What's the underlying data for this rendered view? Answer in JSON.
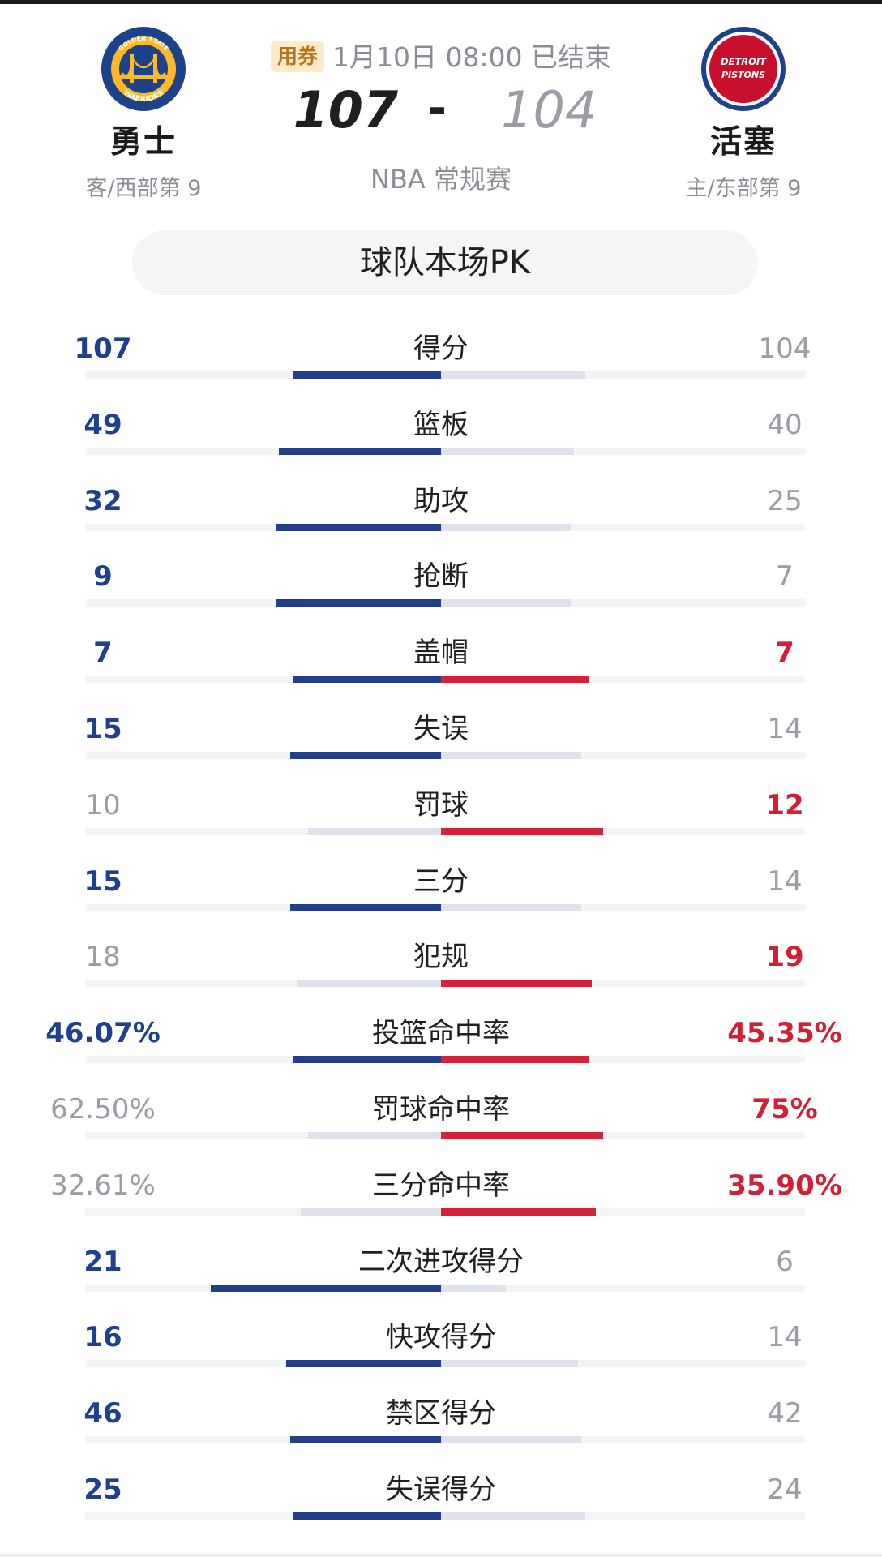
{
  "game": {
    "coupon_label": "用券",
    "status": "1月10日 08:00 已结束",
    "league": "NBA 常规赛",
    "score_dash": "-"
  },
  "away": {
    "name": "勇士",
    "rank": "客/西部第 9",
    "score": "107",
    "logo": {
      "icon": "warriors-logo",
      "text_top": "GOLDEN STATE",
      "text_bottom": "WARRIORS",
      "color": "#1d428a",
      "accent": "#fdb927"
    }
  },
  "home": {
    "name": "活塞",
    "rank": "主/东部第 9",
    "score": "104",
    "logo": {
      "icon": "pistons-logo",
      "text_top": "DETROIT",
      "text_bottom": "PISTONS",
      "color": "#c8102e",
      "accent": "#1d428a"
    }
  },
  "pk_title": "球队本场PK",
  "colors": {
    "away": "#233f8c",
    "home": "#d5223a",
    "neutral": "#9a9da6"
  },
  "stats": [
    {
      "label": "得分",
      "left": "107",
      "right": "104",
      "left_win": true,
      "right_win": false,
      "left_frac": 0.41,
      "right_frac": 0.4
    },
    {
      "label": "篮板",
      "left": "49",
      "right": "40",
      "left_win": true,
      "right_win": false,
      "left_frac": 0.45,
      "right_frac": 0.37
    },
    {
      "label": "助攻",
      "left": "32",
      "right": "25",
      "left_win": true,
      "right_win": false,
      "left_frac": 0.46,
      "right_frac": 0.36
    },
    {
      "label": "抢断",
      "left": "9",
      "right": "7",
      "left_win": true,
      "right_win": false,
      "left_frac": 0.46,
      "right_frac": 0.36
    },
    {
      "label": "盖帽",
      "left": "7",
      "right": "7",
      "left_win": true,
      "right_win": true,
      "left_frac": 0.41,
      "right_frac": 0.41
    },
    {
      "label": "失误",
      "left": "15",
      "right": "14",
      "left_win": true,
      "right_win": false,
      "left_frac": 0.42,
      "right_frac": 0.39
    },
    {
      "label": "罚球",
      "left": "10",
      "right": "12",
      "left_win": false,
      "right_win": true,
      "left_frac": 0.37,
      "right_frac": 0.45
    },
    {
      "label": "三分",
      "left": "15",
      "right": "14",
      "left_win": true,
      "right_win": false,
      "left_frac": 0.42,
      "right_frac": 0.39
    },
    {
      "label": "犯规",
      "left": "18",
      "right": "19",
      "left_win": false,
      "right_win": true,
      "left_frac": 0.4,
      "right_frac": 0.42
    },
    {
      "label": "投篮命中率",
      "left": "46.07%",
      "right": "45.35%",
      "left_win": true,
      "right_win": true,
      "left_frac": 0.41,
      "right_frac": 0.41
    },
    {
      "label": "罚球命中率",
      "left": "62.50%",
      "right": "75%",
      "left_win": false,
      "right_win": true,
      "left_frac": 0.37,
      "right_frac": 0.45
    },
    {
      "label": "三分命中率",
      "left": "32.61%",
      "right": "35.90%",
      "left_win": false,
      "right_win": true,
      "left_frac": 0.39,
      "right_frac": 0.43
    },
    {
      "label": "二次进攻得分",
      "left": "21",
      "right": "6",
      "left_win": true,
      "right_win": false,
      "left_frac": 0.64,
      "right_frac": 0.18
    },
    {
      "label": "快攻得分",
      "left": "16",
      "right": "14",
      "left_win": true,
      "right_win": false,
      "left_frac": 0.43,
      "right_frac": 0.38
    },
    {
      "label": "禁区得分",
      "left": "46",
      "right": "42",
      "left_win": true,
      "right_win": false,
      "left_frac": 0.42,
      "right_frac": 0.39
    },
    {
      "label": "失误得分",
      "left": "25",
      "right": "24",
      "left_win": true,
      "right_win": false,
      "left_frac": 0.41,
      "right_frac": 0.4
    }
  ]
}
